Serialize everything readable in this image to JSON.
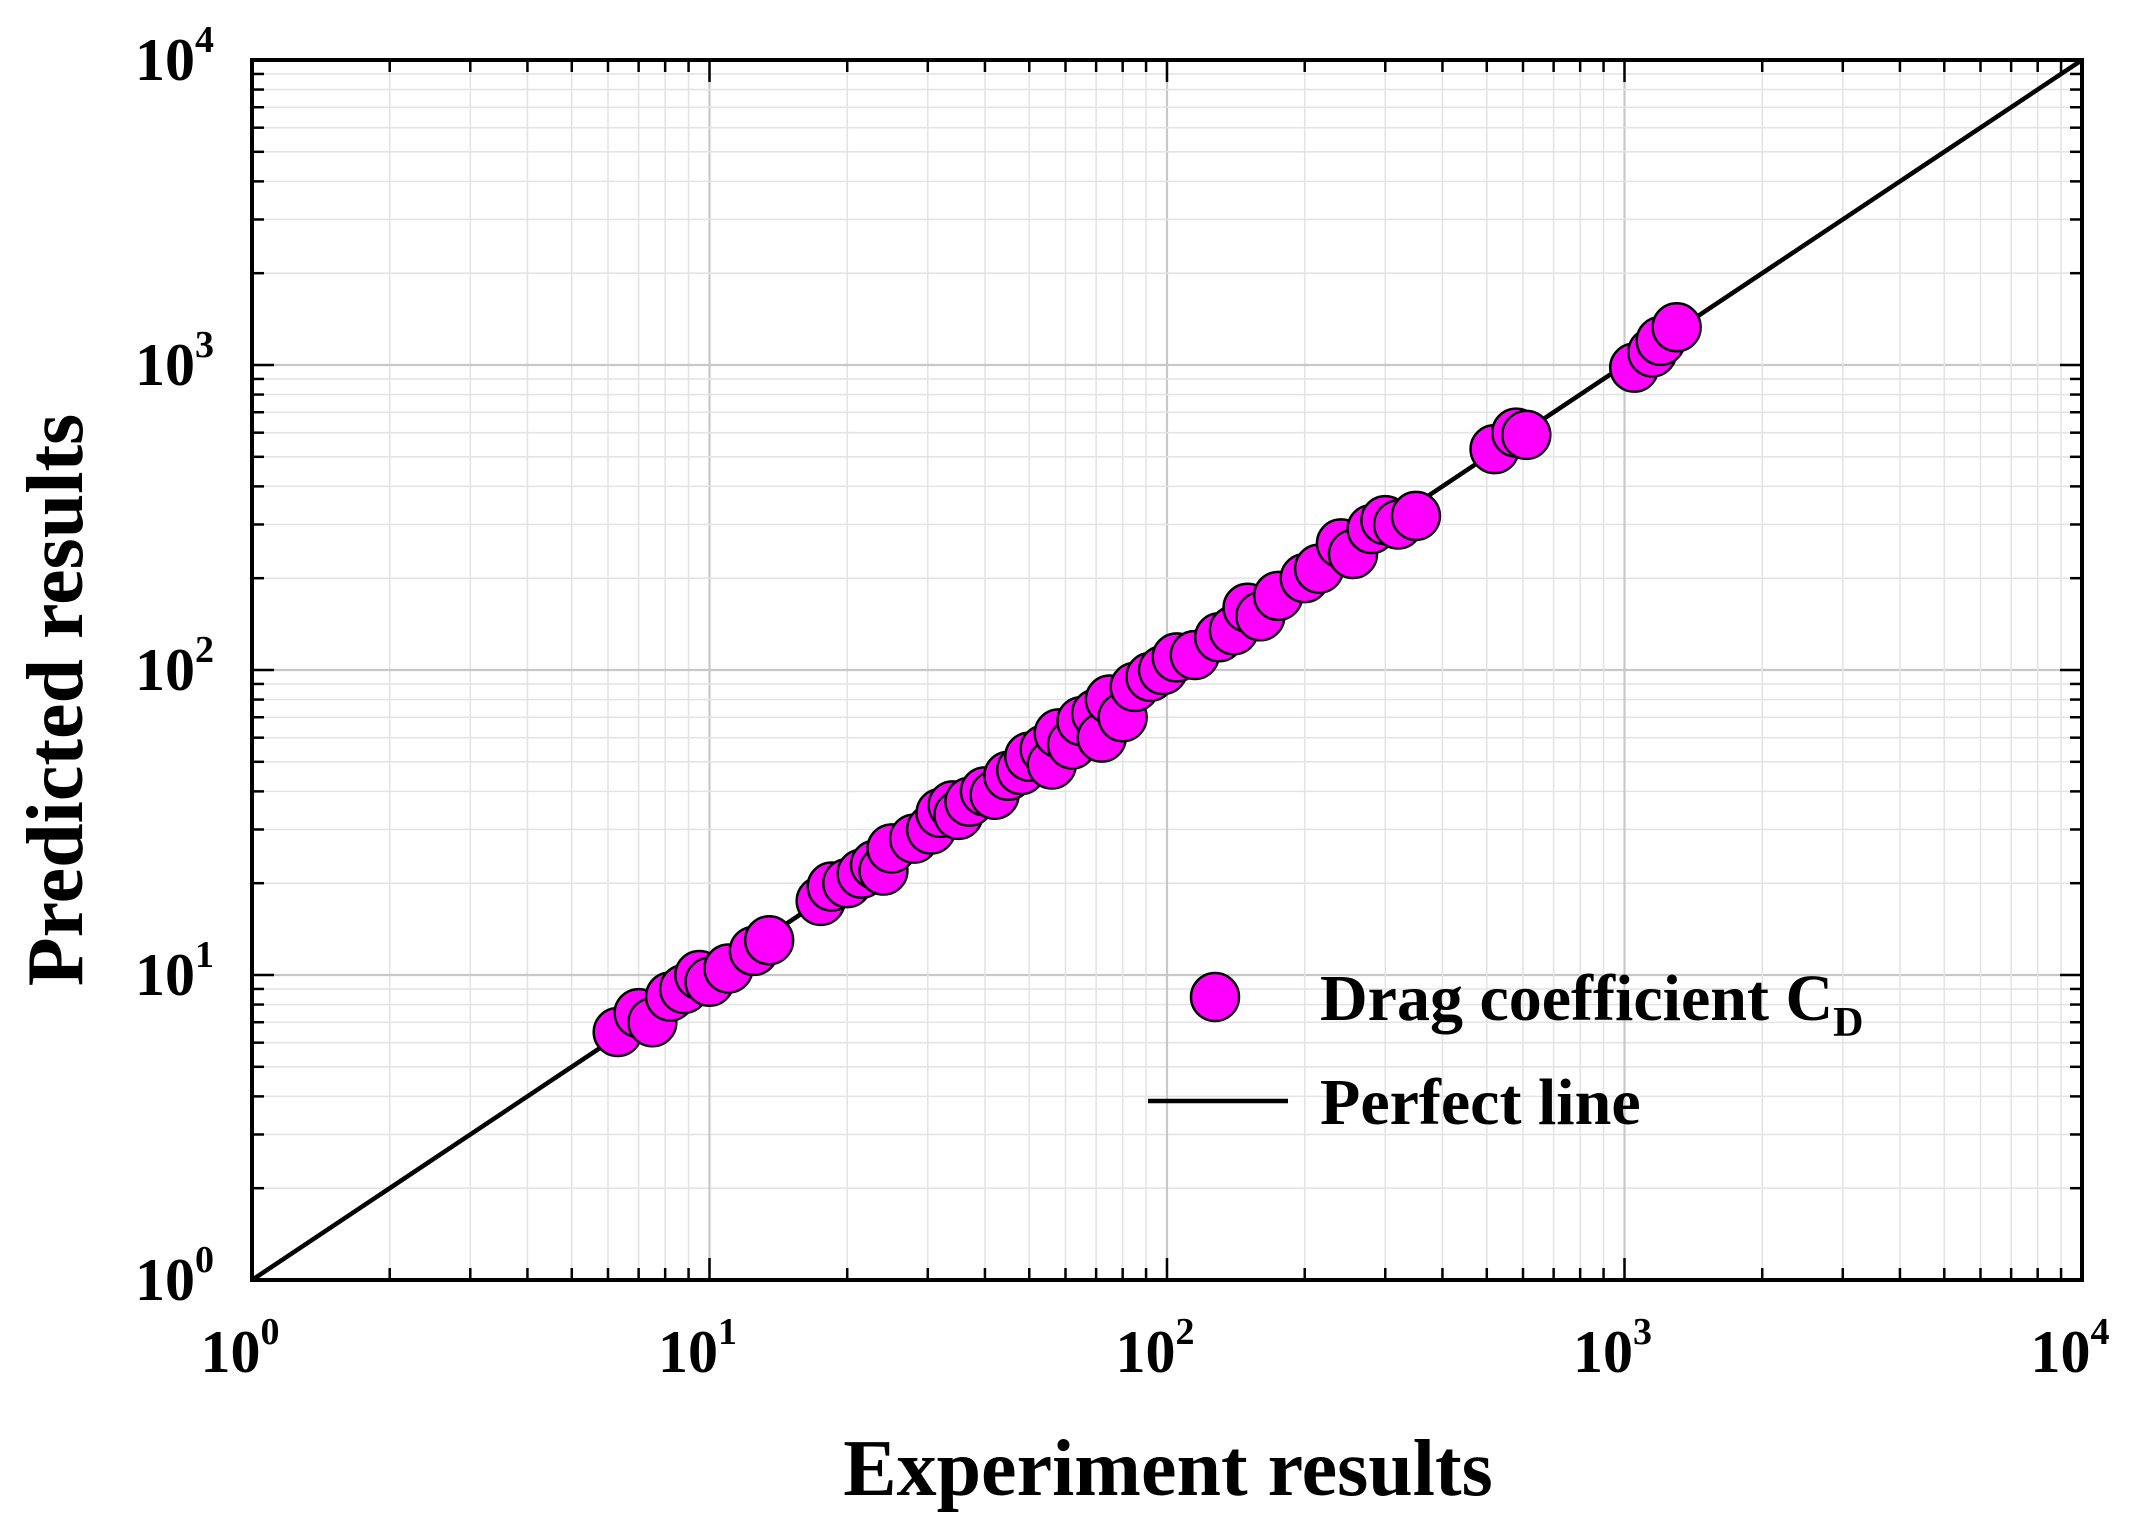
{
  "chart_data": {
    "type": "scatter",
    "title": "",
    "xlabel": "Experiment results",
    "ylabel": "Predicted results",
    "xscale": "log",
    "yscale": "log",
    "xlim": [
      1,
      10000
    ],
    "ylim": [
      1,
      10000
    ],
    "grid": true,
    "legend_position": "bottom-right",
    "tick_labels": [
      {
        "base": "10",
        "exp": "0"
      },
      {
        "base": "10",
        "exp": "1"
      },
      {
        "base": "10",
        "exp": "2"
      },
      {
        "base": "10",
        "exp": "3"
      },
      {
        "base": "10",
        "exp": "4"
      }
    ],
    "legend": {
      "scatter_label": "Drag coefficient C",
      "scatter_label_sub": "D",
      "line_label": "Perfect line"
    },
    "colors": {
      "marker_fill": "#ff00ff",
      "marker_edge": "#000000",
      "line": "#000000",
      "grid_major": "#c8c8c8",
      "grid_minor": "#e4e4e4"
    },
    "series": [
      {
        "name": "Drag coefficient CD",
        "kind": "scatter",
        "points": [
          [
            6.3,
            6.5
          ],
          [
            7.0,
            7.5
          ],
          [
            7.5,
            7.0
          ],
          [
            8.2,
            8.5
          ],
          [
            8.8,
            9.0
          ],
          [
            9.5,
            10.0
          ],
          [
            10.0,
            9.5
          ],
          [
            11.0,
            10.5
          ],
          [
            12.5,
            12.0
          ],
          [
            13.5,
            13.0
          ],
          [
            17.5,
            17.5
          ],
          [
            18.5,
            19.5
          ],
          [
            20.0,
            20.0
          ],
          [
            21.5,
            21.5
          ],
          [
            23.0,
            23.0
          ],
          [
            24.0,
            22.0
          ],
          [
            25.0,
            26.0
          ],
          [
            28.0,
            28.0
          ],
          [
            30.5,
            30.0
          ],
          [
            32.0,
            34.0
          ],
          [
            34.0,
            36.0
          ],
          [
            35.0,
            33.5
          ],
          [
            37.0,
            37.0
          ],
          [
            40.0,
            40.0
          ],
          [
            42.0,
            39.0
          ],
          [
            45.0,
            45.0
          ],
          [
            48.0,
            47.0
          ],
          [
            50.0,
            52.0
          ],
          [
            54.0,
            55.0
          ],
          [
            56.0,
            49.0
          ],
          [
            58.0,
            62.0
          ],
          [
            62.0,
            57.0
          ],
          [
            65.0,
            68.0
          ],
          [
            70.0,
            72.0
          ],
          [
            72.0,
            60.0
          ],
          [
            75.0,
            80.0
          ],
          [
            80.0,
            70.0
          ],
          [
            85.0,
            88.0
          ],
          [
            92.0,
            95.0
          ],
          [
            98.0,
            100.0
          ],
          [
            105.0,
            110.0
          ],
          [
            115.0,
            112.0
          ],
          [
            130.0,
            128.0
          ],
          [
            140.0,
            135.0
          ],
          [
            150.0,
            160.0
          ],
          [
            160.0,
            150.0
          ],
          [
            175.0,
            175.0
          ],
          [
            200.0,
            200.0
          ],
          [
            215.0,
            215.0
          ],
          [
            240.0,
            260.0
          ],
          [
            255.0,
            240.0
          ],
          [
            280.0,
            290.0
          ],
          [
            300.0,
            310.0
          ],
          [
            320.0,
            300.0
          ],
          [
            350.0,
            320.0
          ],
          [
            520.0,
            530.0
          ],
          [
            580.0,
            600.0
          ],
          [
            610.0,
            590.0
          ],
          [
            1050.0,
            980.0
          ],
          [
            1150.0,
            1100.0
          ],
          [
            1200.0,
            1200.0
          ],
          [
            1300.0,
            1330.0
          ]
        ]
      },
      {
        "name": "Perfect line",
        "kind": "line",
        "points": [
          [
            1,
            1
          ],
          [
            10000,
            10000
          ]
        ]
      }
    ]
  }
}
